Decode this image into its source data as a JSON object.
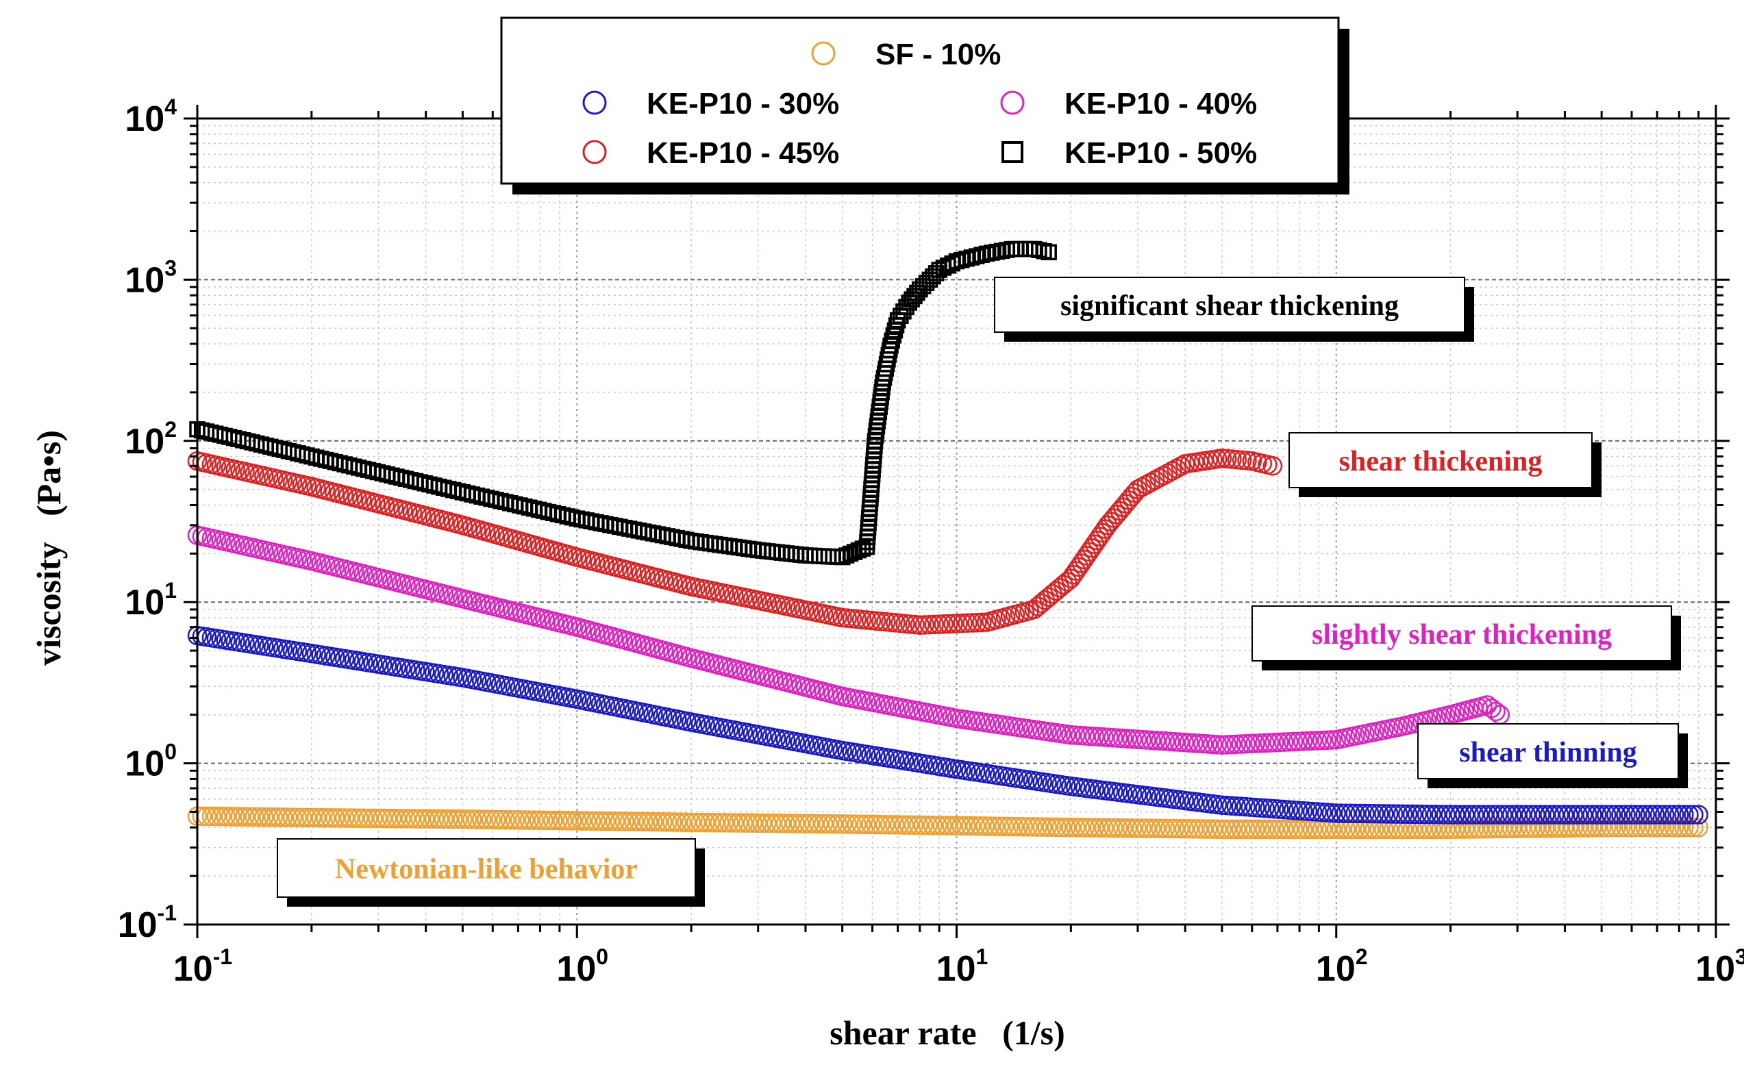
{
  "chart_data": {
    "type": "scatter",
    "xlabel": "shear rate   (1/s)",
    "ylabel": "viscosity   (Pa•s)",
    "xscale": "log",
    "yscale": "log",
    "xlim": [
      0.1,
      1000
    ],
    "ylim": [
      0.1,
      10000
    ],
    "x_ticks": [
      {
        "base": "10",
        "exp": "-1"
      },
      {
        "base": "10",
        "exp": "0"
      },
      {
        "base": "10",
        "exp": "1"
      },
      {
        "base": "10",
        "exp": "2"
      },
      {
        "base": "10",
        "exp": "3"
      }
    ],
    "y_ticks": [
      {
        "base": "10",
        "exp": "-1"
      },
      {
        "base": "10",
        "exp": "0"
      },
      {
        "base": "10",
        "exp": "1"
      },
      {
        "base": "10",
        "exp": "2"
      },
      {
        "base": "10",
        "exp": "3"
      },
      {
        "base": "10",
        "exp": "4"
      }
    ],
    "grid": "dotted major and minor",
    "legend_position": "top",
    "series": [
      {
        "name": "SF - 10%",
        "marker": "circle",
        "color": "#f0a030",
        "x": [
          0.1,
          0.2,
          0.5,
          1,
          2,
          5,
          10,
          20,
          50,
          100,
          200,
          500,
          900
        ],
        "y": [
          0.47,
          0.46,
          0.45,
          0.44,
          0.43,
          0.42,
          0.41,
          0.4,
          0.39,
          0.39,
          0.39,
          0.4,
          0.4
        ]
      },
      {
        "name": "KE-P10 - 30%",
        "marker": "circle",
        "color": "#1a1ac8",
        "x": [
          0.1,
          0.2,
          0.5,
          1,
          2,
          5,
          10,
          20,
          50,
          100,
          200,
          500,
          900
        ],
        "y": [
          6.2,
          4.8,
          3.4,
          2.5,
          1.8,
          1.2,
          0.92,
          0.72,
          0.55,
          0.49,
          0.48,
          0.48,
          0.48
        ]
      },
      {
        "name": "KE-P10 - 40%",
        "marker": "circle",
        "color": "#e020c0",
        "x": [
          0.1,
          0.2,
          0.5,
          1,
          2,
          5,
          10,
          20,
          50,
          100,
          150,
          200,
          250,
          270
        ],
        "y": [
          26,
          18,
          10.5,
          7,
          4.5,
          2.6,
          1.9,
          1.5,
          1.3,
          1.4,
          1.7,
          2.0,
          2.3,
          2.0
        ]
      },
      {
        "name": "KE-P10 - 45%",
        "marker": "circle",
        "color": "#e02020",
        "x": [
          0.1,
          0.2,
          0.5,
          1,
          2,
          5,
          8,
          12,
          16,
          20,
          25,
          30,
          40,
          50,
          60,
          68
        ],
        "y": [
          75,
          52,
          30,
          19,
          12.5,
          8,
          7.2,
          7.5,
          9,
          14,
          30,
          50,
          72,
          78,
          75,
          70
        ]
      },
      {
        "name": "KE-P10 - 50%",
        "marker": "square",
        "color": "#000000",
        "x": [
          0.1,
          0.2,
          0.5,
          1,
          2,
          3,
          4,
          5,
          5.8,
          6.1,
          6.4,
          6.7,
          7,
          7.5,
          8,
          8.5,
          9,
          10,
          12,
          14,
          16,
          17.5
        ],
        "y": [
          118,
          80,
          48,
          33,
          24,
          21,
          19.5,
          19,
          22,
          100,
          230,
          390,
          560,
          720,
          870,
          1000,
          1150,
          1300,
          1450,
          1550,
          1550,
          1480
        ]
      }
    ],
    "annotations": [
      {
        "text": "significant shear thickening",
        "color": "#000000"
      },
      {
        "text": "shear thickening",
        "color": "#e02020"
      },
      {
        "text": "slightly shear thickening",
        "color": "#e020c0"
      },
      {
        "text": "shear thinning",
        "color": "#1a1ac8"
      },
      {
        "text": "Newtonian-like behavior",
        "color": "#f0a030"
      }
    ]
  }
}
